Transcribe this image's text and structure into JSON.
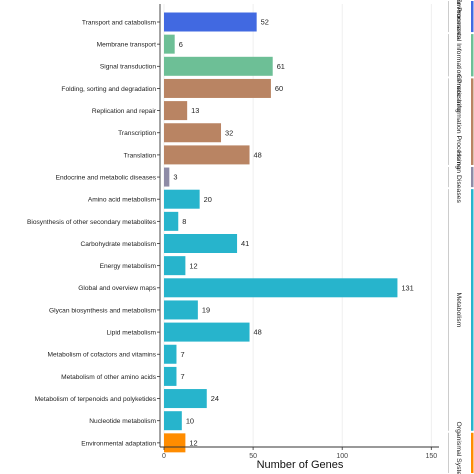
{
  "chart_data": {
    "type": "bar",
    "orientation": "horizontal",
    "xlabel": "Number of Genes",
    "xlim": [
      0,
      150
    ],
    "xticks": [
      0,
      50,
      100,
      150
    ],
    "grid": true,
    "categories": [
      "Transport and catabolism",
      "Membrane transport",
      "Signal transduction",
      "Folding, sorting and degradation",
      "Replication and repair",
      "Transcription",
      "Translation",
      "Endocrine and metabolic diseases",
      "Amino acid metabolism",
      "Biosynthesis of other secondary metabolites",
      "Carbohydrate metabolism",
      "Energy metabolism",
      "Global and overview maps",
      "Glycan biosynthesis and metabolism",
      "Lipid metabolism",
      "Metabolism of cofactors and vitamins",
      "Metabolism of other amino acids",
      "Metabolism of terpenoids and polyketides",
      "Nucleotide metabolism",
      "Environmental adaptation"
    ],
    "values": [
      52,
      6,
      61,
      60,
      13,
      32,
      48,
      3,
      20,
      8,
      41,
      12,
      131,
      19,
      48,
      7,
      7,
      24,
      10,
      12
    ],
    "bar_groups": [
      0,
      1,
      1,
      2,
      2,
      2,
      2,
      3,
      4,
      4,
      4,
      4,
      4,
      4,
      4,
      4,
      4,
      4,
      4,
      5
    ],
    "groups": [
      {
        "name": "Cellular Processes",
        "label": "ular Processes",
        "color": "#4169e1"
      },
      {
        "name": "Environmental Information Processing",
        "label": "Environmental Information Processing",
        "color": "#6dbf96"
      },
      {
        "name": "Genetic Information Processing",
        "label": "Genetic Information Processing",
        "color": "#b98463"
      },
      {
        "name": "Human Diseases",
        "label": "Human Diseases",
        "color": "#8e8ba6"
      },
      {
        "name": "Metabolism",
        "label": "Metabolism",
        "color": "#27b4cc"
      },
      {
        "name": "Organismal Systems",
        "label": "Organismal Systems",
        "color": "#ff8c00"
      }
    ]
  }
}
